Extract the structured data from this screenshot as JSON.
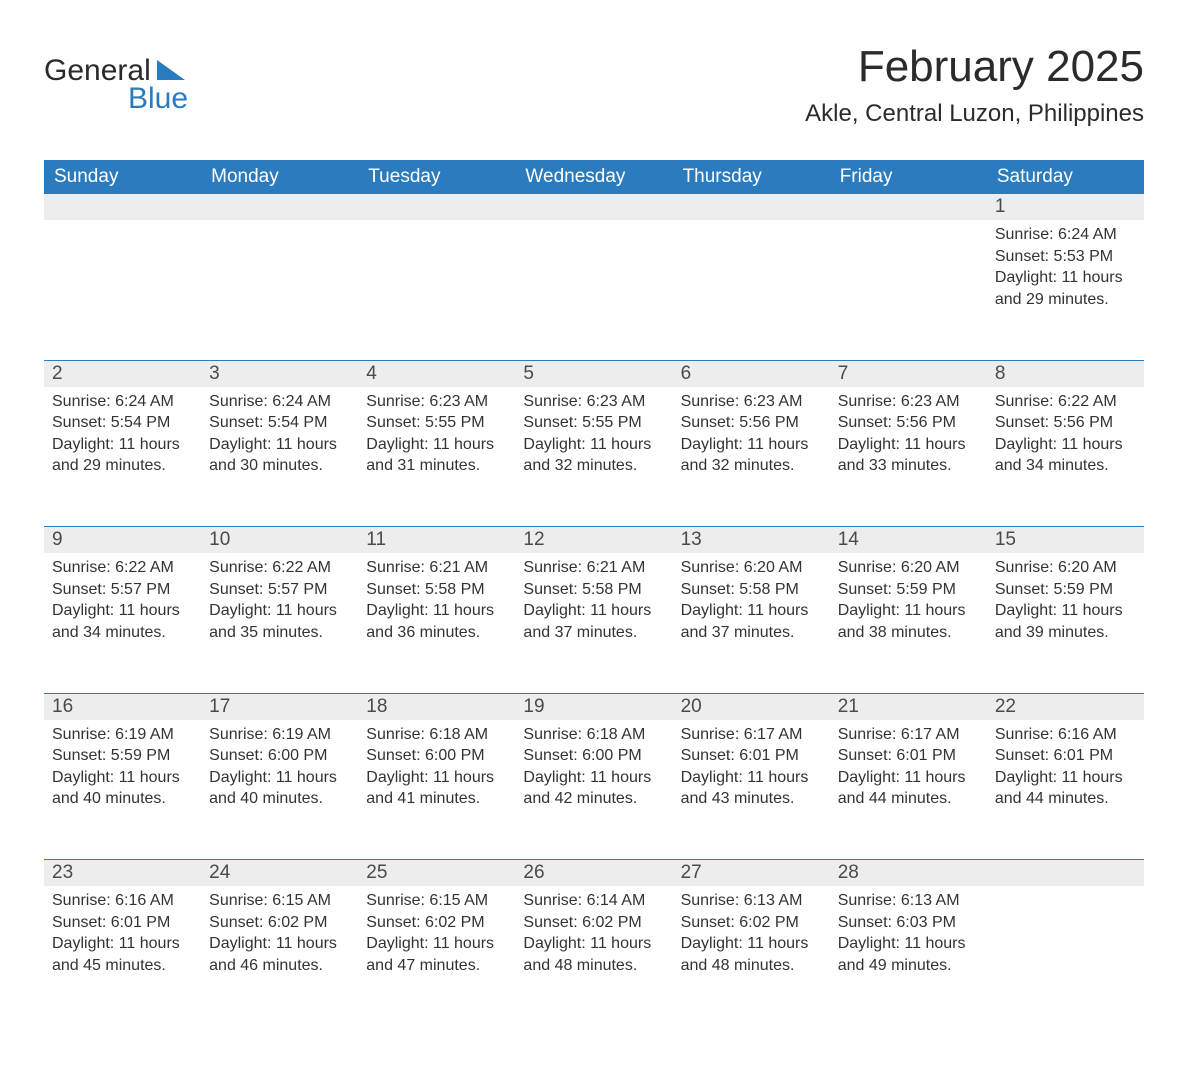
{
  "logo": {
    "word1": "General",
    "word2": "Blue",
    "accent_color": "#2b7bbf"
  },
  "title": {
    "month": "February 2025",
    "location": "Akle, Central Luzon, Philippines"
  },
  "calendar": {
    "header_bg": "#2b7bbf",
    "header_text_color": "#ffffff",
    "daynum_bg": "#ededed",
    "rule_color": "#2b7bbf",
    "text_color": "#333333",
    "day_headers": [
      "Sunday",
      "Monday",
      "Tuesday",
      "Wednesday",
      "Thursday",
      "Friday",
      "Saturday"
    ],
    "weeks": [
      [
        null,
        null,
        null,
        null,
        null,
        null,
        {
          "n": "1",
          "sunrise": "6:24 AM",
          "sunset": "5:53 PM",
          "daylight": "11 hours and 29 minutes."
        }
      ],
      [
        {
          "n": "2",
          "sunrise": "6:24 AM",
          "sunset": "5:54 PM",
          "daylight": "11 hours and 29 minutes."
        },
        {
          "n": "3",
          "sunrise": "6:24 AM",
          "sunset": "5:54 PM",
          "daylight": "11 hours and 30 minutes."
        },
        {
          "n": "4",
          "sunrise": "6:23 AM",
          "sunset": "5:55 PM",
          "daylight": "11 hours and 31 minutes."
        },
        {
          "n": "5",
          "sunrise": "6:23 AM",
          "sunset": "5:55 PM",
          "daylight": "11 hours and 32 minutes."
        },
        {
          "n": "6",
          "sunrise": "6:23 AM",
          "sunset": "5:56 PM",
          "daylight": "11 hours and 32 minutes."
        },
        {
          "n": "7",
          "sunrise": "6:23 AM",
          "sunset": "5:56 PM",
          "daylight": "11 hours and 33 minutes."
        },
        {
          "n": "8",
          "sunrise": "6:22 AM",
          "sunset": "5:56 PM",
          "daylight": "11 hours and 34 minutes."
        }
      ],
      [
        {
          "n": "9",
          "sunrise": "6:22 AM",
          "sunset": "5:57 PM",
          "daylight": "11 hours and 34 minutes."
        },
        {
          "n": "10",
          "sunrise": "6:22 AM",
          "sunset": "5:57 PM",
          "daylight": "11 hours and 35 minutes."
        },
        {
          "n": "11",
          "sunrise": "6:21 AM",
          "sunset": "5:58 PM",
          "daylight": "11 hours and 36 minutes."
        },
        {
          "n": "12",
          "sunrise": "6:21 AM",
          "sunset": "5:58 PM",
          "daylight": "11 hours and 37 minutes."
        },
        {
          "n": "13",
          "sunrise": "6:20 AM",
          "sunset": "5:58 PM",
          "daylight": "11 hours and 37 minutes."
        },
        {
          "n": "14",
          "sunrise": "6:20 AM",
          "sunset": "5:59 PM",
          "daylight": "11 hours and 38 minutes."
        },
        {
          "n": "15",
          "sunrise": "6:20 AM",
          "sunset": "5:59 PM",
          "daylight": "11 hours and 39 minutes."
        }
      ],
      [
        {
          "n": "16",
          "sunrise": "6:19 AM",
          "sunset": "5:59 PM",
          "daylight": "11 hours and 40 minutes."
        },
        {
          "n": "17",
          "sunrise": "6:19 AM",
          "sunset": "6:00 PM",
          "daylight": "11 hours and 40 minutes."
        },
        {
          "n": "18",
          "sunrise": "6:18 AM",
          "sunset": "6:00 PM",
          "daylight": "11 hours and 41 minutes."
        },
        {
          "n": "19",
          "sunrise": "6:18 AM",
          "sunset": "6:00 PM",
          "daylight": "11 hours and 42 minutes."
        },
        {
          "n": "20",
          "sunrise": "6:17 AM",
          "sunset": "6:01 PM",
          "daylight": "11 hours and 43 minutes."
        },
        {
          "n": "21",
          "sunrise": "6:17 AM",
          "sunset": "6:01 PM",
          "daylight": "11 hours and 44 minutes."
        },
        {
          "n": "22",
          "sunrise": "6:16 AM",
          "sunset": "6:01 PM",
          "daylight": "11 hours and 44 minutes."
        }
      ],
      [
        {
          "n": "23",
          "sunrise": "6:16 AM",
          "sunset": "6:01 PM",
          "daylight": "11 hours and 45 minutes."
        },
        {
          "n": "24",
          "sunrise": "6:15 AM",
          "sunset": "6:02 PM",
          "daylight": "11 hours and 46 minutes."
        },
        {
          "n": "25",
          "sunrise": "6:15 AM",
          "sunset": "6:02 PM",
          "daylight": "11 hours and 47 minutes."
        },
        {
          "n": "26",
          "sunrise": "6:14 AM",
          "sunset": "6:02 PM",
          "daylight": "11 hours and 48 minutes."
        },
        {
          "n": "27",
          "sunrise": "6:13 AM",
          "sunset": "6:02 PM",
          "daylight": "11 hours and 48 minutes."
        },
        {
          "n": "28",
          "sunrise": "6:13 AM",
          "sunset": "6:03 PM",
          "daylight": "11 hours and 49 minutes."
        },
        null
      ]
    ],
    "labels": {
      "sunrise": "Sunrise: ",
      "sunset": "Sunset: ",
      "daylight": "Daylight: "
    }
  }
}
